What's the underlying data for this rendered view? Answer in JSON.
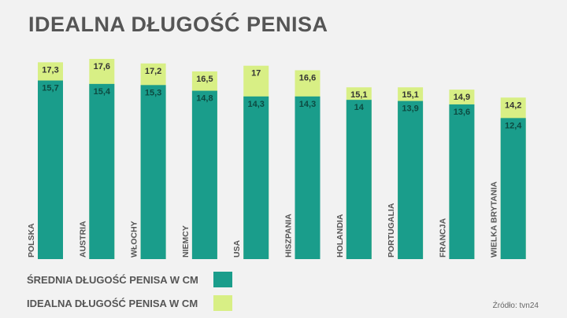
{
  "title": "IDEALNA DŁUGOŚĆ PENISA",
  "source": "Źródło: tvn24",
  "colors": {
    "average": "#1a9d8b",
    "ideal": "#d8ef85",
    "background": "#f2f2f2",
    "text": "#555555"
  },
  "chart_data": {
    "type": "bar",
    "stacked": "overlay",
    "title": "IDEALNA DŁUGOŚĆ PENISA",
    "categories": [
      "POLSKA",
      "AUSTRIA",
      "WŁOCHY",
      "NIEMCY",
      "USA",
      "HISZPANIA",
      "HOLANDIA",
      "PORTUGALIA",
      "FRANCJA",
      "WIELKA BRYTANIA"
    ],
    "series": [
      {
        "name": "ŚREDNIA DŁUGOŚĆ PENISA W CM",
        "color": "#1a9d8b",
        "values": [
          15.7,
          15.4,
          15.3,
          14.8,
          14.3,
          14.3,
          14,
          13.9,
          13.6,
          12.4
        ],
        "labels": [
          "15,7",
          "15,4",
          "15,3",
          "14,8",
          "14,3",
          "14,3",
          "14",
          "13,9",
          "13,6",
          "12,4"
        ]
      },
      {
        "name": "IDEALNA DŁUGOŚĆ PENISA W CM",
        "color": "#d8ef85",
        "values": [
          17.3,
          17.6,
          17.2,
          16.5,
          17,
          16.6,
          15.1,
          15.1,
          14.9,
          14.2
        ],
        "labels": [
          "17,3",
          "17,6",
          "17,2",
          "16,5",
          "17",
          "16,6",
          "15,1",
          "15,1",
          "14,9",
          "14,2"
        ]
      }
    ],
    "xlabel": "",
    "ylabel": "",
    "grid": false,
    "legend": "bottom-left"
  }
}
